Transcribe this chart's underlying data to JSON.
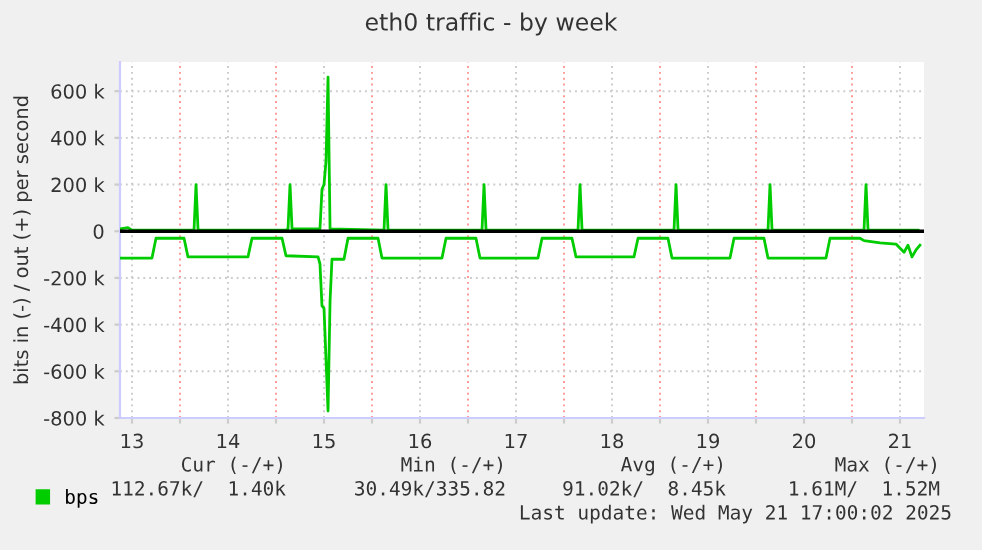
{
  "chart_data": {
    "type": "line",
    "title": "eth0 traffic - by week",
    "ylabel": "bits in (-) / out (+) per second",
    "xlim": [
      13.375,
      21.75
    ],
    "xticks": [
      {
        "value": 13.5,
        "label": "13"
      },
      {
        "value": 14,
        "label": null
      },
      {
        "value": 14.5,
        "label": "14"
      },
      {
        "value": 15,
        "label": null
      },
      {
        "value": 15.5,
        "label": "15"
      },
      {
        "value": 16,
        "label": null
      },
      {
        "value": 16.5,
        "label": "16"
      },
      {
        "value": 17,
        "label": null
      },
      {
        "value": 17.5,
        "label": "17"
      },
      {
        "value": 18,
        "label": null
      },
      {
        "value": 18.5,
        "label": "18"
      },
      {
        "value": 19,
        "label": null
      },
      {
        "value": 19.5,
        "label": "19"
      },
      {
        "value": 20,
        "label": null
      },
      {
        "value": 20.5,
        "label": "20"
      },
      {
        "value": 21,
        "label": null
      },
      {
        "value": 21.5,
        "label": "21"
      }
    ],
    "ylim": [
      -800000,
      725000
    ],
    "yticks": [
      {
        "value": -800000,
        "label": "-800 k"
      },
      {
        "value": -600000,
        "label": "-600 k"
      },
      {
        "value": -400000,
        "label": "-400 k"
      },
      {
        "value": -200000,
        "label": "-200 k"
      },
      0,
      {
        "value": 200000,
        "label": "200 k"
      },
      {
        "value": 400000,
        "label": "400 k"
      },
      {
        "value": 600000,
        "label": "600 k"
      }
    ],
    "grid": true,
    "legend": "bottom left",
    "ref_lines": [
      {
        "axis": "y",
        "value": 0,
        "color": "#000000"
      }
    ],
    "series": [
      {
        "name": "bps",
        "color": "#00cc00",
        "x": [
          13.375,
          13.458,
          13.5,
          14.146,
          14.167,
          14.188,
          15.104,
          15.125,
          15.146,
          15.167,
          15.458,
          15.479,
          15.5,
          15.521,
          15.542,
          15.563,
          16.125,
          16.146,
          16.167,
          17.146,
          17.167,
          17.188,
          18.146,
          18.167,
          18.188,
          19.146,
          19.167,
          19.188,
          20.125,
          20.146,
          20.167,
          21.125,
          21.146,
          21.167,
          21.688
        ],
        "values": [
          10000,
          15000,
          5000,
          5000,
          200000,
          5000,
          5000,
          10000,
          200000,
          10000,
          10000,
          180000,
          200000,
          300000,
          660000,
          10000,
          5000,
          200000,
          5000,
          5000,
          200000,
          5000,
          5000,
          200000,
          5000,
          5000,
          200000,
          5000,
          5000,
          200000,
          5000,
          5000,
          200000,
          5000,
          5000
        ]
      },
      {
        "color": "#00cc00",
        "x": [
          13.375,
          13.708,
          13.75,
          14.042,
          14.083,
          14.708,
          14.75,
          15.063,
          15.104,
          15.438,
          15.458,
          15.479,
          15.5,
          15.542,
          15.563,
          15.583,
          15.708,
          15.75,
          16.063,
          16.104,
          16.729,
          16.771,
          17.083,
          17.125,
          17.729,
          17.771,
          18.083,
          18.125,
          18.729,
          18.771,
          19.083,
          19.125,
          19.729,
          19.771,
          20.083,
          20.125,
          20.729,
          20.771,
          21.083,
          21.125,
          21.292,
          21.458,
          21.542,
          21.583,
          21.625,
          21.667,
          21.708
        ],
        "values": [
          -115000,
          -115000,
          -30000,
          -30000,
          -110000,
          -110000,
          -30000,
          -30000,
          -105000,
          -110000,
          -140000,
          -320000,
          -330000,
          -770000,
          -300000,
          -120000,
          -120000,
          -30000,
          -30000,
          -115000,
          -115000,
          -30000,
          -30000,
          -115000,
          -115000,
          -30000,
          -30000,
          -110000,
          -110000,
          -30000,
          -30000,
          -115000,
          -115000,
          -30000,
          -30000,
          -115000,
          -115000,
          -30000,
          -30000,
          -40000,
          -50000,
          -55000,
          -90000,
          -60000,
          -110000,
          -80000,
          -60000
        ]
      }
    ],
    "annotations": [
      "Cur (-/+)",
      "Min (-/+)",
      "Avg (-/+)",
      "Max (-/+)",
      "112.67k/  1.40k",
      "30.49k/335.82",
      "91.02k/  8.45k",
      "1.61M/  1.52M",
      "Last update: Wed May 21 17:00:02 2025"
    ]
  }
}
